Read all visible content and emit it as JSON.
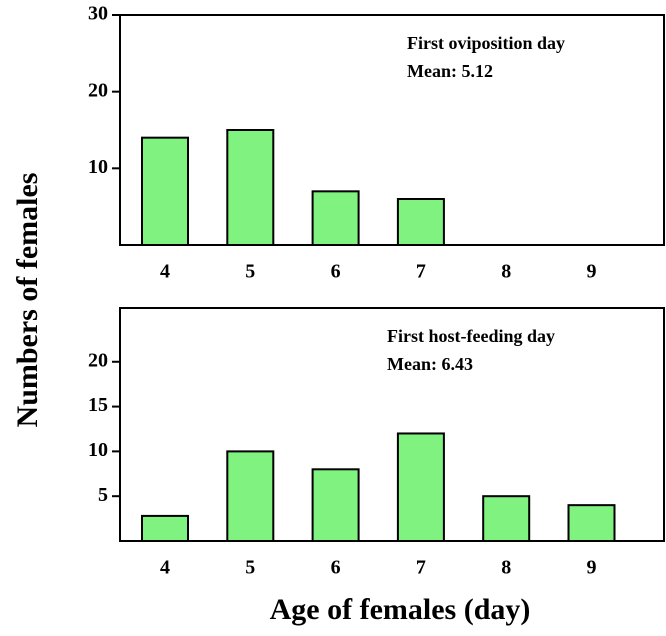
{
  "ylabel": "Numbers of females",
  "xlabel": "Age of females (day)",
  "chart_data": [
    {
      "type": "bar",
      "categories": [
        "4",
        "5",
        "6",
        "7",
        "8",
        "9"
      ],
      "values": [
        14,
        15,
        7,
        6,
        0,
        0
      ],
      "color": "#7ff27f",
      "ylim": [
        0,
        30
      ],
      "yticks": [
        10,
        20,
        30
      ],
      "annotations": [
        "First oviposition day",
        "Mean: 5.12"
      ]
    },
    {
      "type": "bar",
      "categories": [
        "4",
        "5",
        "6",
        "7",
        "8",
        "9"
      ],
      "values": [
        2.8,
        10,
        8,
        12,
        5,
        4
      ],
      "color": "#7ff27f",
      "ylim": [
        0,
        26
      ],
      "yticks": [
        5,
        10,
        15,
        20
      ],
      "annotations": [
        "First host-feeding day",
        "Mean: 6.43"
      ]
    }
  ]
}
